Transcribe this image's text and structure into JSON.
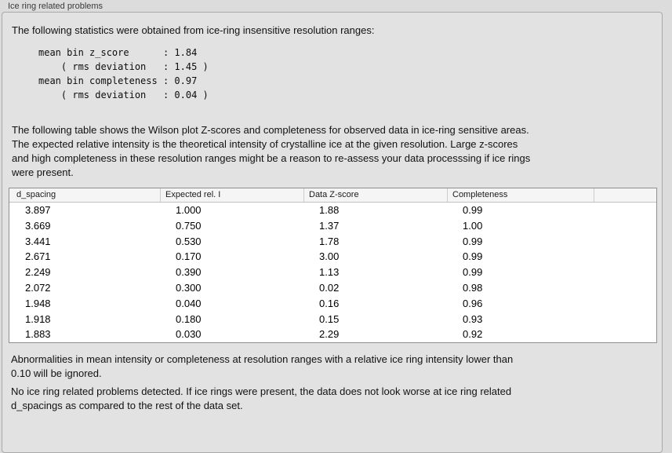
{
  "panel": {
    "title": "Ice ring related problems"
  },
  "intro": "The following statistics were obtained from ice-ring insensitive resolution ranges:",
  "stats_block": "mean bin z_score      : 1.84\n    ( rms deviation   : 1.45 )\nmean bin completeness : 0.97\n    ( rms deviation   : 0.04 )",
  "description": "The following table shows the Wilson plot Z-scores and completeness for observed data in ice-ring sensitive areas.\nThe expected relative intensity is the theoretical intensity of crystalline ice at the given resolution. Large z-scores\nand high completeness in these resolution ranges might be a reason to re-assess your data processsing if ice rings\nwere present.",
  "table": {
    "columns": [
      "d_spacing",
      "Expected rel. I",
      "Data Z-score",
      "Completeness"
    ],
    "rows": [
      [
        "3.897",
        "1.000",
        "1.88",
        "0.99"
      ],
      [
        "3.669",
        "0.750",
        "1.37",
        "1.00"
      ],
      [
        "3.441",
        "0.530",
        "1.78",
        "0.99"
      ],
      [
        "2.671",
        "0.170",
        "3.00",
        "0.99"
      ],
      [
        "2.249",
        "0.390",
        "1.13",
        "0.99"
      ],
      [
        "2.072",
        "0.300",
        "0.02",
        "0.98"
      ],
      [
        "1.948",
        "0.040",
        "0.16",
        "0.96"
      ],
      [
        "1.918",
        "0.180",
        "0.15",
        "0.93"
      ],
      [
        "1.883",
        "0.030",
        "2.29",
        "0.92"
      ]
    ]
  },
  "footnote": "Abnormalities in mean intensity or completeness at resolution ranges with a relative ice ring intensity lower than\n0.10 will be ignored.",
  "conclusion": "No ice ring related problems detected. If ice rings were present, the data does not look worse at ice ring related\nd_spacings as compared to the rest of the data set.",
  "colors": {
    "window_background": "#dcdcdc",
    "groupbox_background": "#e2e2e2",
    "groupbox_border": "#a9a9a9",
    "table_background": "#ffffff",
    "table_border": "#8f8f8f",
    "table_header_background": "#f5f5f5",
    "text": "#111111"
  }
}
